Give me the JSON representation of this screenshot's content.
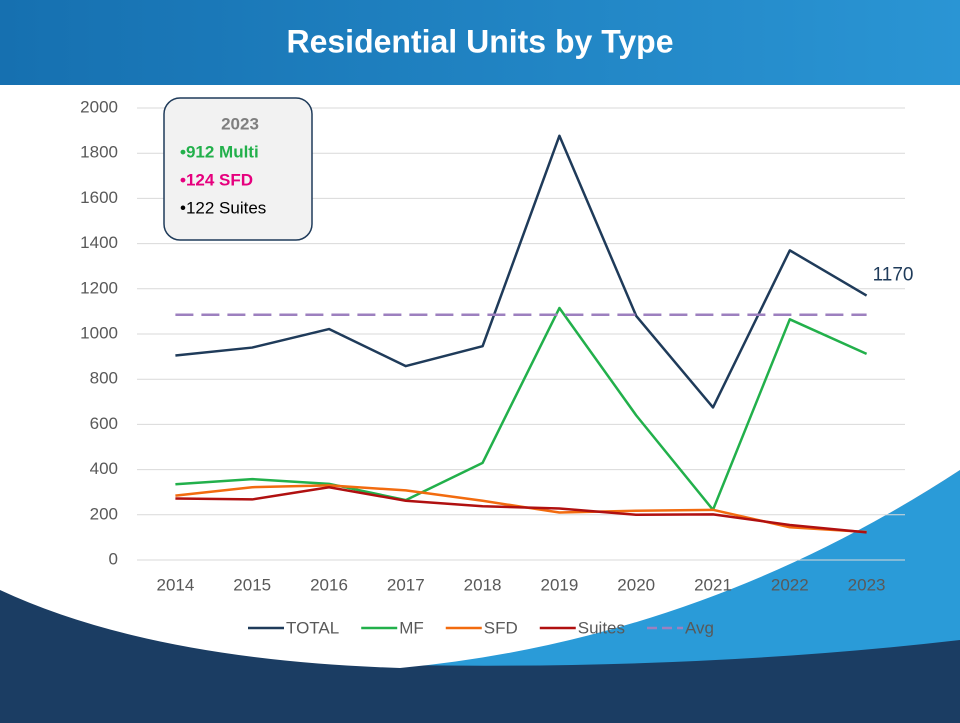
{
  "chart_data": {
    "type": "line",
    "title": "Residential Units by Type",
    "categories": [
      "2014",
      "2015",
      "2016",
      "2017",
      "2018",
      "2019",
      "2020",
      "2021",
      "2022",
      "2023"
    ],
    "series": [
      {
        "name": "TOTAL",
        "color": "#1f3b5a",
        "values": [
          905,
          940,
          1022,
          858,
          946,
          1877,
          1080,
          675,
          1370,
          1170
        ]
      },
      {
        "name": "MF",
        "color": "#22b04b",
        "values": [
          335,
          358,
          337,
          265,
          430,
          1115,
          640,
          222,
          1065,
          912
        ]
      },
      {
        "name": "SFD",
        "color": "#f26b0f",
        "values": [
          285,
          322,
          330,
          308,
          262,
          210,
          218,
          222,
          145,
          124
        ]
      },
      {
        "name": "Suites",
        "color": "#b01010",
        "values": [
          272,
          268,
          322,
          262,
          238,
          228,
          200,
          202,
          155,
          122
        ]
      },
      {
        "name": "Avg",
        "color": "#9d80bf",
        "dashed": true,
        "values": [
          1085,
          1085,
          1085,
          1085,
          1085,
          1085,
          1085,
          1085,
          1085,
          1085
        ]
      }
    ],
    "ylim": [
      0,
      2000
    ],
    "yticks": [
      0,
      200,
      400,
      600,
      800,
      1000,
      1200,
      1400,
      1600,
      1800,
      2000
    ],
    "grid": true,
    "legend": "bottom",
    "annotations": [
      {
        "text": "2023",
        "color": "#7f7f7f"
      },
      {
        "text": "•912 Multi",
        "color": "#22b04b"
      },
      {
        "text": "•124 SFD",
        "color": "#e6007e"
      },
      {
        "text": "•122 Suites",
        "color": "#000000"
      }
    ]
  }
}
